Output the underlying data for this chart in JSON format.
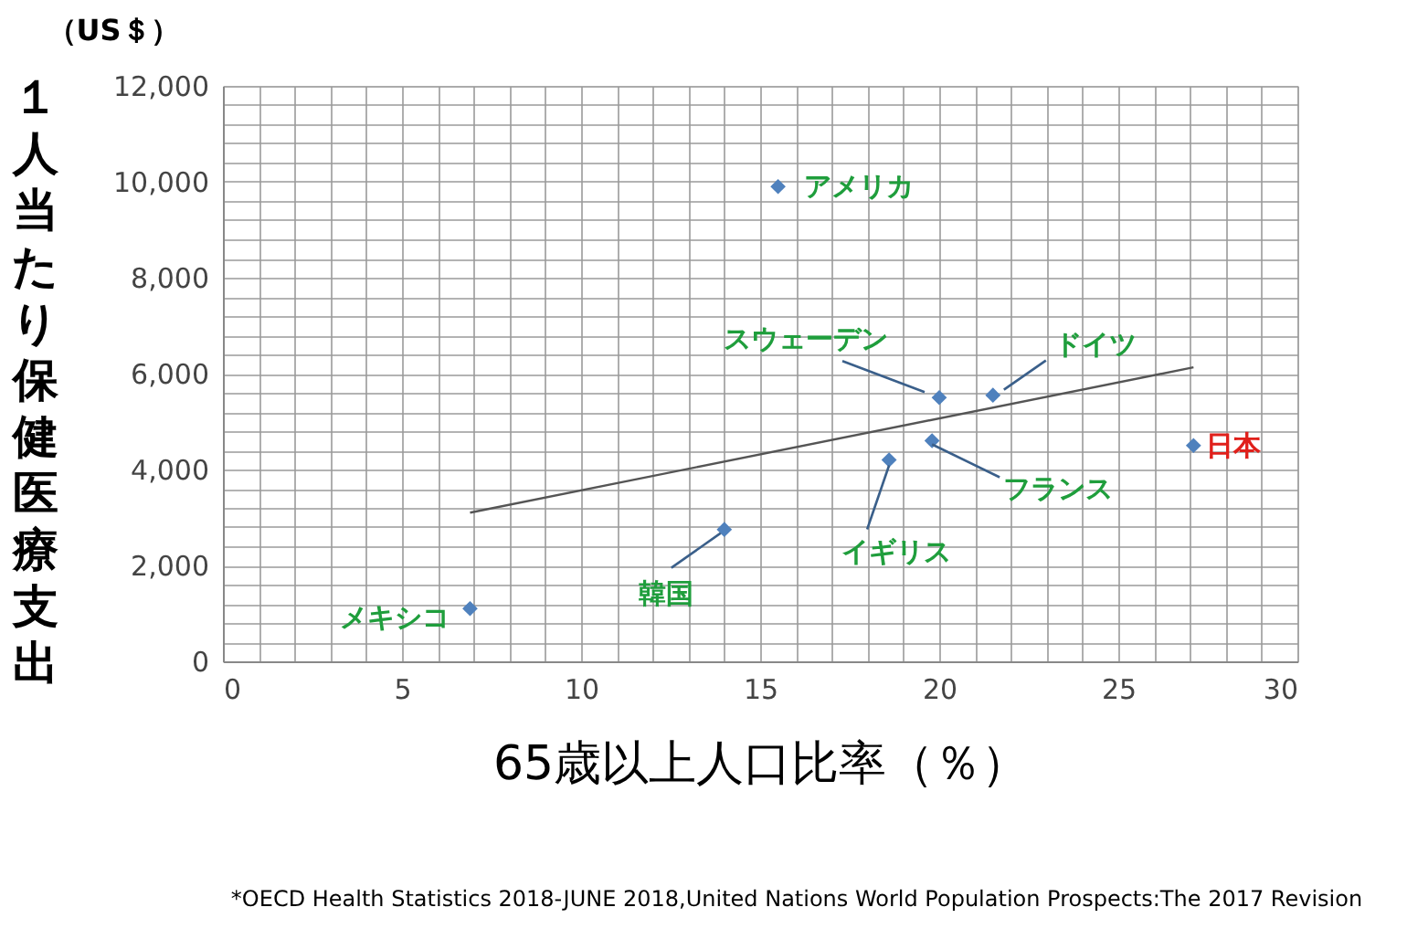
{
  "chart_data": {
    "type": "scatter",
    "xlabel": "65歳以上人口比率（％）",
    "ylabel": "１人当たり保健医療支出",
    "series": [
      {
        "color": "#4f81bd",
        "marker": "diamond",
        "x": [
          15.5,
          20.0,
          21.5,
          27.1,
          19.8,
          18.6,
          14.0,
          6.9
        ],
        "values": [
          9900,
          5500,
          5550,
          4500,
          4600,
          4200,
          2750,
          1100
        ]
      },
      {
        "type": "line",
        "color": "#555555",
        "line_style": "solid",
        "x": [
          6.9,
          27.1
        ],
        "values": [
          3100,
          6130
        ]
      }
    ],
    "annotations": [
      {
        "text": "アメリカ",
        "x": 15.5,
        "y": 9900
      },
      {
        "text": "スウェーデン",
        "x": 20.0,
        "y": 5500
      },
      {
        "text": "ドイツ",
        "x": 21.5,
        "y": 5550
      },
      {
        "text": "日本",
        "x": 27.1,
        "y": 4500
      },
      {
        "text": "フランス",
        "x": 19.8,
        "y": 4600
      },
      {
        "text": "イギリス",
        "x": 18.6,
        "y": 4200
      },
      {
        "text": "韓国",
        "x": 14.0,
        "y": 2750
      },
      {
        "text": "メキシコ",
        "x": 6.9,
        "y": 1100
      },
      "（US＄）",
      "*OECD Health Statistics 2018-JUNE 2018,United Nations World Population Prospects:The 2017 Revision"
    ],
    "xlim": [
      0,
      30
    ],
    "xticks": [
      0,
      {
        "value": 1,
        "label": null
      },
      {
        "value": 2,
        "label": null
      },
      {
        "value": 3,
        "label": null
      },
      {
        "value": 4,
        "label": null
      },
      5,
      {
        "value": 6,
        "label": null
      },
      {
        "value": 7,
        "label": null
      },
      {
        "value": 8,
        "label": null
      },
      {
        "value": 9,
        "label": null
      },
      10,
      {
        "value": 11,
        "label": null
      },
      {
        "value": 12,
        "label": null
      },
      {
        "value": 13,
        "label": null
      },
      {
        "value": 14,
        "label": null
      },
      15,
      {
        "value": 16,
        "label": null
      },
      {
        "value": 17,
        "label": null
      },
      {
        "value": 18,
        "label": null
      },
      {
        "value": 19,
        "label": null
      },
      20,
      {
        "value": 21,
        "label": null
      },
      {
        "value": 22,
        "label": null
      },
      {
        "value": 23,
        "label": null
      },
      {
        "value": 24,
        "label": null
      },
      25,
      {
        "value": 26,
        "label": null
      },
      {
        "value": 27,
        "label": null
      },
      {
        "value": 28,
        "label": null
      },
      {
        "value": 29,
        "label": null
      },
      30
    ],
    "ylim": [
      0,
      12000
    ],
    "yticks": [
      0,
      {
        "value": 400,
        "label": null
      },
      {
        "value": 800,
        "label": null
      },
      {
        "value": 1200,
        "label": null
      },
      {
        "value": 1600,
        "label": null
      },
      {
        "value": 2000,
        "label": "2,000"
      },
      {
        "value": 2400,
        "label": null
      },
      {
        "value": 2800,
        "label": null
      },
      {
        "value": 3200,
        "label": null
      },
      {
        "value": 3600,
        "label": null
      },
      {
        "value": 4000,
        "label": "4,000"
      },
      {
        "value": 4400,
        "label": null
      },
      {
        "value": 4800,
        "label": null
      },
      {
        "value": 5200,
        "label": null
      },
      {
        "value": 5600,
        "label": null
      },
      {
        "value": 6000,
        "label": "6,000"
      },
      {
        "value": 6400,
        "label": null
      },
      {
        "value": 6800,
        "label": null
      },
      {
        "value": 7200,
        "label": null
      },
      {
        "value": 7600,
        "label": null
      },
      {
        "value": 8000,
        "label": "8,000"
      },
      {
        "value": 8400,
        "label": null
      },
      {
        "value": 8800,
        "label": null
      },
      {
        "value": 9200,
        "label": null
      },
      {
        "value": 9600,
        "label": null
      },
      {
        "value": 10000,
        "label": "10,000"
      },
      {
        "value": 10400,
        "label": null
      },
      {
        "value": 10800,
        "label": null
      },
      {
        "value": 11200,
        "label": null
      },
      {
        "value": 11600,
        "label": null
      },
      {
        "value": 12000,
        "label": "12,000"
      }
    ],
    "grid": true
  }
}
